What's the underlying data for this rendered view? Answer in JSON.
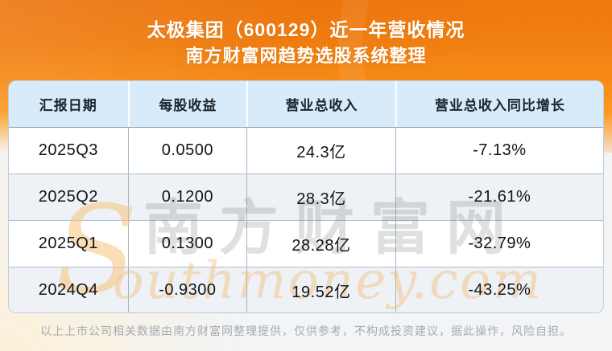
{
  "page": {
    "title": "太极集团（600129）近一年营收情况",
    "subtitle": "南方财富网趋势选股系统整理",
    "footer": "以上上市公司相关数据由南方财富网整理提供，仅供参考，不构成投资建议，据此操作，风险自担。"
  },
  "watermark": {
    "initial": "S",
    "cjk": "南方财富网",
    "latin": "outhmoney.com"
  },
  "table": {
    "headers": [
      "汇报日期",
      "每股收益",
      "营业总收入",
      "营业总收入同比增长"
    ],
    "rows": [
      [
        "2025Q3",
        "0.0500",
        "24.3亿",
        "-7.13%"
      ],
      [
        "2025Q2",
        "0.1200",
        "28.3亿",
        "-21.61%"
      ],
      [
        "2025Q1",
        "0.1300",
        "28.28亿",
        "-32.79%"
      ],
      [
        "2024Q4",
        "-0.9300",
        "19.52亿",
        "-43.25%"
      ]
    ]
  },
  "colors": {
    "hero_orange_top": "#ec750e",
    "hero_orange_bottom": "#fb9c26",
    "header_row_bg": "#d8ebfa",
    "alt_row_bg": "#eef1f6",
    "cell_text": "#101418",
    "footer_text": "#a6acb2"
  },
  "chart_data": {
    "type": "table",
    "title": "太极集团（600129）近一年营收情况",
    "subtitle": "南方财富网趋势选股系统整理",
    "columns": [
      "汇报日期",
      "每股收益",
      "营业总收入",
      "营业总收入同比增长"
    ],
    "rows": [
      {
        "汇报日期": "2025Q3",
        "每股收益": 0.05,
        "营业总收入": "24.3亿",
        "营业总收入同比增长": "-7.13%"
      },
      {
        "汇报日期": "2025Q2",
        "每股收益": 0.12,
        "营业总收入": "28.3亿",
        "营业总收入同比增长": "-21.61%"
      },
      {
        "汇报日期": "2025Q1",
        "每股收益": 0.13,
        "营业总收入": "28.28亿",
        "营业总收入同比增长": "-32.79%"
      },
      {
        "汇报日期": "2024Q4",
        "每股收益": -0.93,
        "营业总收入": "19.52亿",
        "营业总收入同比增长": "-43.25%"
      }
    ],
    "source_watermark": "southmoney.com 南方财富网"
  }
}
